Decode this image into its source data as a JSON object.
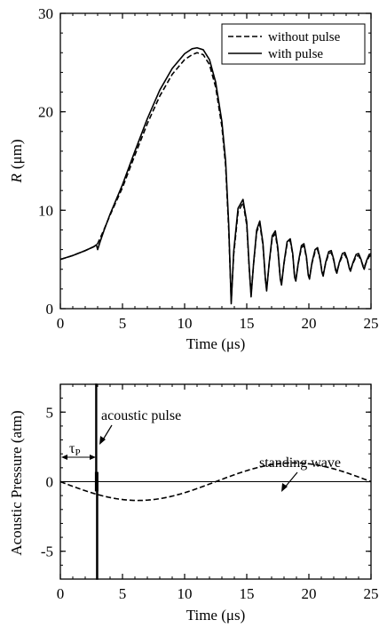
{
  "chart_data": [
    {
      "type": "line",
      "xlabel": "Time (μs)",
      "ylabel_italic": "R",
      "ylabel_unit": "(μm)",
      "xlim": [
        0,
        25
      ],
      "ylim": [
        0,
        30
      ],
      "xticks": [
        "0",
        "5",
        "10",
        "15",
        "20",
        "25"
      ],
      "yticks": [
        "0",
        "10",
        "20",
        "30"
      ],
      "legend_position": "top-right",
      "grid": false,
      "series": [
        {
          "name": "without pulse",
          "style": "dashed",
          "points": [
            [
              0,
              5.0
            ],
            [
              1,
              5.4
            ],
            [
              2,
              5.9
            ],
            [
              2.7,
              6.3
            ],
            [
              3,
              6.6
            ],
            [
              3.5,
              8.0
            ],
            [
              4,
              9.5
            ],
            [
              5,
              12.3
            ],
            [
              6,
              15.6
            ],
            [
              7,
              18.8
            ],
            [
              8,
              21.6
            ],
            [
              9,
              23.8
            ],
            [
              10,
              25.3
            ],
            [
              10.6,
              25.8
            ],
            [
              11,
              26.0
            ],
            [
              11.5,
              25.8
            ],
            [
              12,
              24.8
            ],
            [
              12.5,
              22.5
            ],
            [
              13,
              18.5
            ],
            [
              13.3,
              14.5
            ],
            [
              13.55,
              8.0
            ],
            [
              13.75,
              0.8
            ],
            [
              13.95,
              5.5
            ],
            [
              14.3,
              9.8
            ],
            [
              14.7,
              10.8
            ],
            [
              15.0,
              8.5
            ],
            [
              15.2,
              4.0
            ],
            [
              15.35,
              1.5
            ],
            [
              15.55,
              4.5
            ],
            [
              15.8,
              7.8
            ],
            [
              16.05,
              8.6
            ],
            [
              16.3,
              6.5
            ],
            [
              16.5,
              3.0
            ],
            [
              16.6,
              2.0
            ],
            [
              16.8,
              4.5
            ],
            [
              17.05,
              7.2
            ],
            [
              17.3,
              7.6
            ],
            [
              17.5,
              6.0
            ],
            [
              17.7,
              3.0
            ],
            [
              17.8,
              2.6
            ],
            [
              18.0,
              4.6
            ],
            [
              18.25,
              6.6
            ],
            [
              18.5,
              6.9
            ],
            [
              18.7,
              5.5
            ],
            [
              18.85,
              3.3
            ],
            [
              18.95,
              3.0
            ],
            [
              19.15,
              4.6
            ],
            [
              19.4,
              6.2
            ],
            [
              19.6,
              6.4
            ],
            [
              19.8,
              5.2
            ],
            [
              19.95,
              3.5
            ],
            [
              20.05,
              3.2
            ],
            [
              20.25,
              4.6
            ],
            [
              20.5,
              5.8
            ],
            [
              20.7,
              6.0
            ],
            [
              20.9,
              5.0
            ],
            [
              21.05,
              3.8
            ],
            [
              21.15,
              3.5
            ],
            [
              21.35,
              4.6
            ],
            [
              21.6,
              5.6
            ],
            [
              21.8,
              5.7
            ],
            [
              22.0,
              4.9
            ],
            [
              22.15,
              4.0
            ],
            [
              22.25,
              3.8
            ],
            [
              22.45,
              4.6
            ],
            [
              22.7,
              5.4
            ],
            [
              22.9,
              5.5
            ],
            [
              23.1,
              4.9
            ],
            [
              23.25,
              4.2
            ],
            [
              23.35,
              4.0
            ],
            [
              23.55,
              4.6
            ],
            [
              23.8,
              5.3
            ],
            [
              24.0,
              5.4
            ],
            [
              24.2,
              4.9
            ],
            [
              24.35,
              4.4
            ],
            [
              24.45,
              4.2
            ],
            [
              24.65,
              4.8
            ],
            [
              24.85,
              5.3
            ],
            [
              25.0,
              5.4
            ]
          ]
        },
        {
          "name": "with pulse",
          "style": "solid",
          "points": [
            [
              0,
              5.0
            ],
            [
              1,
              5.4
            ],
            [
              2,
              5.9
            ],
            [
              2.7,
              6.3
            ],
            [
              2.9,
              6.5
            ],
            [
              3.0,
              6.0
            ],
            [
              3.2,
              6.8
            ],
            [
              3.5,
              7.9
            ],
            [
              4,
              9.6
            ],
            [
              5,
              12.6
            ],
            [
              6,
              16.0
            ],
            [
              7,
              19.3
            ],
            [
              8,
              22.2
            ],
            [
              9,
              24.4
            ],
            [
              10,
              25.9
            ],
            [
              10.6,
              26.4
            ],
            [
              11,
              26.5
            ],
            [
              11.5,
              26.3
            ],
            [
              12,
              25.3
            ],
            [
              12.5,
              23.0
            ],
            [
              13,
              19.0
            ],
            [
              13.3,
              15.0
            ],
            [
              13.55,
              8.5
            ],
            [
              13.75,
              0.5
            ],
            [
              13.95,
              5.8
            ],
            [
              14.3,
              10.2
            ],
            [
              14.7,
              11.1
            ],
            [
              15.0,
              8.8
            ],
            [
              15.2,
              4.2
            ],
            [
              15.35,
              1.2
            ],
            [
              15.55,
              4.6
            ],
            [
              15.8,
              8.0
            ],
            [
              16.05,
              8.9
            ],
            [
              16.3,
              6.7
            ],
            [
              16.5,
              3.0
            ],
            [
              16.6,
              1.8
            ],
            [
              16.8,
              4.6
            ],
            [
              17.05,
              7.4
            ],
            [
              17.3,
              7.9
            ],
            [
              17.5,
              6.2
            ],
            [
              17.7,
              3.0
            ],
            [
              17.8,
              2.4
            ],
            [
              18.0,
              4.7
            ],
            [
              18.25,
              6.8
            ],
            [
              18.5,
              7.1
            ],
            [
              18.7,
              5.6
            ],
            [
              18.85,
              3.2
            ],
            [
              18.95,
              2.8
            ],
            [
              19.15,
              4.7
            ],
            [
              19.4,
              6.4
            ],
            [
              19.6,
              6.6
            ],
            [
              19.8,
              5.3
            ],
            [
              19.95,
              3.4
            ],
            [
              20.05,
              3.0
            ],
            [
              20.25,
              4.7
            ],
            [
              20.5,
              6.0
            ],
            [
              20.7,
              6.2
            ],
            [
              20.9,
              5.1
            ],
            [
              21.05,
              3.7
            ],
            [
              21.15,
              3.3
            ],
            [
              21.35,
              4.7
            ],
            [
              21.6,
              5.8
            ],
            [
              21.8,
              5.9
            ],
            [
              22.0,
              5.0
            ],
            [
              22.15,
              3.9
            ],
            [
              22.25,
              3.6
            ],
            [
              22.45,
              4.7
            ],
            [
              22.7,
              5.6
            ],
            [
              22.9,
              5.7
            ],
            [
              23.1,
              5.0
            ],
            [
              23.25,
              4.1
            ],
            [
              23.35,
              3.8
            ],
            [
              23.55,
              4.7
            ],
            [
              23.8,
              5.5
            ],
            [
              24.0,
              5.6
            ],
            [
              24.2,
              5.0
            ],
            [
              24.35,
              4.3
            ],
            [
              24.45,
              4.0
            ],
            [
              24.65,
              4.9
            ],
            [
              24.85,
              5.5
            ],
            [
              25.0,
              5.6
            ]
          ]
        }
      ]
    },
    {
      "type": "line",
      "xlabel": "Time (μs)",
      "ylabel": "Acoustic Pressure (atm)",
      "xlim": [
        0,
        25
      ],
      "ylim": [
        -7,
        7
      ],
      "xticks": [
        "0",
        "5",
        "10",
        "15",
        "20",
        "25"
      ],
      "yticks": [
        "-5",
        "0",
        "5"
      ],
      "grid": false,
      "zero_line": true,
      "series": [
        {
          "name": "standing wave",
          "style": "dashed",
          "function": "-1.35*sin(2*pi*t/25)",
          "amplitude_atm": 1.35,
          "period_us": 25
        },
        {
          "name": "acoustic pulse",
          "style": "solid",
          "points": [
            [
              2.85,
              0
            ],
            [
              2.85,
              7.0
            ],
            [
              2.92,
              7.0
            ],
            [
              2.92,
              -7.0
            ],
            [
              3.0,
              -7.0
            ],
            [
              3.0,
              0
            ]
          ]
        }
      ],
      "annotations": {
        "pulse_label": "acoustic pulse",
        "wave_label": "standing wave",
        "tau_symbol": "τ",
        "tau_subscript": "P",
        "tau_value_us": 2.9
      }
    }
  ]
}
